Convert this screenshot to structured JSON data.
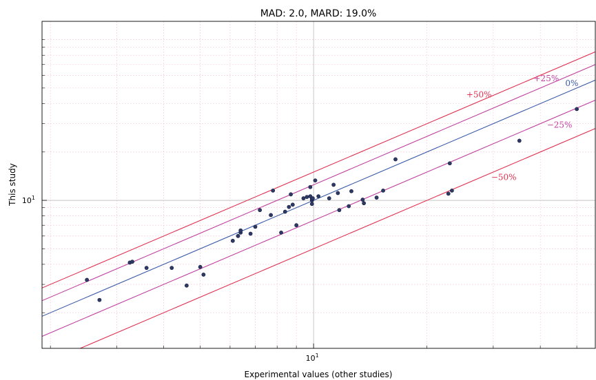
{
  "chart_data": {
    "type": "scatter",
    "title": "MAD: 2.0, MARD: 19.0%",
    "xlabel": "Experimental values (other studies)",
    "ylabel": "This study",
    "xscale": "log",
    "yscale": "log",
    "xlim": [
      1.9,
      56
    ],
    "ylim": [
      1.2,
      130
    ],
    "x_ticks": [
      {
        "value": 10,
        "label": "10^1"
      }
    ],
    "y_ticks": [
      {
        "value": 10,
        "label": "10^1"
      }
    ],
    "grid": true,
    "colors": {
      "points": "#2e3a66",
      "ref_0": "#3a5aa8",
      "ref_25": "#b040b0",
      "ref_50": "#e03030",
      "grid": "#f4b6c8"
    },
    "reference_lines": [
      {
        "factor": 1.0,
        "label": "0%",
        "color": "#3a5aa8",
        "label_x": 48.5
      },
      {
        "factor": 1.25,
        "label": "+25%",
        "color": "#c040a0",
        "label_x": 41.5
      },
      {
        "factor": 0.75,
        "label": "−25%",
        "color": "#c040a0",
        "label_x": 45
      },
      {
        "factor": 1.5,
        "label": "+50%",
        "color": "#e03050",
        "label_x": 27.5
      },
      {
        "factor": 0.5,
        "label": "−50%",
        "color": "#e03050",
        "label_x": 32
      }
    ],
    "points": [
      {
        "x": 2.5,
        "y": 3.2
      },
      {
        "x": 2.7,
        "y": 2.4
      },
      {
        "x": 3.25,
        "y": 4.1
      },
      {
        "x": 3.3,
        "y": 4.15
      },
      {
        "x": 3.6,
        "y": 3.8
      },
      {
        "x": 4.2,
        "y": 3.8
      },
      {
        "x": 4.6,
        "y": 2.95
      },
      {
        "x": 5.0,
        "y": 3.85
      },
      {
        "x": 5.1,
        "y": 3.45
      },
      {
        "x": 6.1,
        "y": 5.6
      },
      {
        "x": 6.3,
        "y": 6.0
      },
      {
        "x": 6.4,
        "y": 6.3
      },
      {
        "x": 6.4,
        "y": 6.5
      },
      {
        "x": 6.8,
        "y": 6.2
      },
      {
        "x": 7.0,
        "y": 6.85
      },
      {
        "x": 7.2,
        "y": 8.7
      },
      {
        "x": 7.7,
        "y": 8.1
      },
      {
        "x": 7.8,
        "y": 11.5
      },
      {
        "x": 8.2,
        "y": 6.3
      },
      {
        "x": 8.4,
        "y": 8.5
      },
      {
        "x": 8.6,
        "y": 9.1
      },
      {
        "x": 8.7,
        "y": 10.9
      },
      {
        "x": 8.8,
        "y": 9.4
      },
      {
        "x": 9.0,
        "y": 7.0
      },
      {
        "x": 9.4,
        "y": 10.3
      },
      {
        "x": 9.6,
        "y": 10.5
      },
      {
        "x": 9.9,
        "y": 10.0
      },
      {
        "x": 9.8,
        "y": 10.6
      },
      {
        "x": 9.8,
        "y": 12.1
      },
      {
        "x": 9.9,
        "y": 10.2
      },
      {
        "x": 9.9,
        "y": 9.5
      },
      {
        "x": 9.95,
        "y": 10.3
      },
      {
        "x": 10.1,
        "y": 13.3
      },
      {
        "x": 10.3,
        "y": 10.6
      },
      {
        "x": 11.0,
        "y": 10.3
      },
      {
        "x": 11.3,
        "y": 12.5
      },
      {
        "x": 11.6,
        "y": 11.1
      },
      {
        "x": 11.7,
        "y": 8.7
      },
      {
        "x": 12.4,
        "y": 9.2
      },
      {
        "x": 12.6,
        "y": 11.4
      },
      {
        "x": 13.5,
        "y": 10.1
      },
      {
        "x": 13.6,
        "y": 9.6
      },
      {
        "x": 14.7,
        "y": 10.4
      },
      {
        "x": 15.3,
        "y": 11.5
      },
      {
        "x": 16.5,
        "y": 18.0
      },
      {
        "x": 22.8,
        "y": 11.0
      },
      {
        "x": 23.0,
        "y": 17.0
      },
      {
        "x": 23.3,
        "y": 11.5
      },
      {
        "x": 35.2,
        "y": 23.5
      },
      {
        "x": 50.0,
        "y": 37.0
      }
    ]
  }
}
